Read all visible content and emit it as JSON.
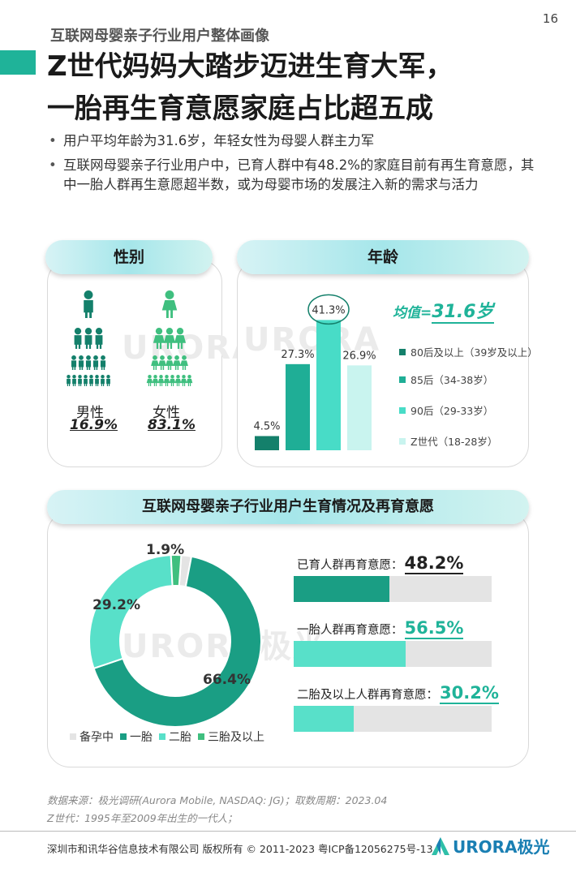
{
  "page_number": "16",
  "section_label": "互联网母婴亲子行业用户整体画像",
  "headline": {
    "line1": "Z世代妈妈大踏步迈进生育大军，",
    "line2": "一胎再生育意愿家庭占比超五成"
  },
  "bullets": [
    "用户平均年龄为31.6岁，年轻女性为母婴人群主力军",
    "互联网母婴亲子行业用户中，已育人群中有48.2%的家庭目前有再生育意愿，其中一胎人群再生意愿超半数，或为母婴市场的发展注入新的需求与活力"
  ],
  "gender_panel": {
    "title": "性别",
    "watermark": "URORA极光",
    "male": {
      "label": "男性",
      "value": "16.9%"
    },
    "female": {
      "label": "女性",
      "value": "83.1%"
    }
  },
  "age_panel": {
    "title": "年龄",
    "average_label": "均值=",
    "average_value": "31.6岁",
    "colors": {
      "post80": "#14806b",
      "post85": "#1fae96",
      "post90": "#48dcc7",
      "genz": "#c9f4ef"
    }
  },
  "birth_panel": {
    "title": "互联网母婴亲子行业用户生育情况及再育意愿",
    "watermark": "URORA极光",
    "willingness": [
      {
        "label": "已育人群再育意愿：",
        "value": "48.2%",
        "fraction": 0.482,
        "color": "#1a9e84",
        "text_color": "#222222"
      },
      {
        "label": "一胎人群再育意愿：",
        "value": "56.5%",
        "fraction": 0.565,
        "color": "#58e0c9",
        "text_color": "#1fb399"
      },
      {
        "label": "二胎及以上人群再育意愿：",
        "value": "30.2%",
        "fraction": 0.302,
        "color": "#58e0c9",
        "text_color": "#1fb399"
      }
    ]
  },
  "chart_data": [
    {
      "type": "bar",
      "categories": [
        "80后及以上（39岁及以上）",
        "85后（34-38岁）",
        "90后（29-33岁）",
        "Z世代（18-28岁）"
      ],
      "values": [
        4.5,
        27.3,
        41.3,
        26.9
      ],
      "value_labels": [
        "4.5%",
        "27.3%",
        "41.3%",
        "26.9%"
      ],
      "highlight_index": 2,
      "ylim": [
        0,
        45
      ],
      "legend_order": [
        0,
        1,
        2,
        3
      ],
      "legend_placement": "right"
    },
    {
      "type": "pie",
      "donut": true,
      "categories": [
        "备孕中",
        "一胎",
        "二胎",
        "三胎及以上"
      ],
      "values": [
        1.9,
        66.4,
        29.2,
        1.9
      ],
      "value_labels": [
        "",
        "66.4%",
        "29.2%",
        "1.9%"
      ],
      "colors": [
        "#e4e4e4",
        "#1a9e84",
        "#58e0c9",
        "#3fbf7f"
      ],
      "legend_placement": "bottom"
    }
  ],
  "footnotes": [
    "数据来源：极光调研(Aurora Mobile, NASDAQ: JG)；取数周期：2023.04",
    "Z世代：1995年至2009年出生的一代人；"
  ],
  "footer": {
    "copyright": "深圳市和讯华谷信息技术有限公司 版权所有 © 2011-2023 粤ICP备12056275号-13",
    "brand_main": "URORA",
    "brand_suffix": "极光"
  }
}
